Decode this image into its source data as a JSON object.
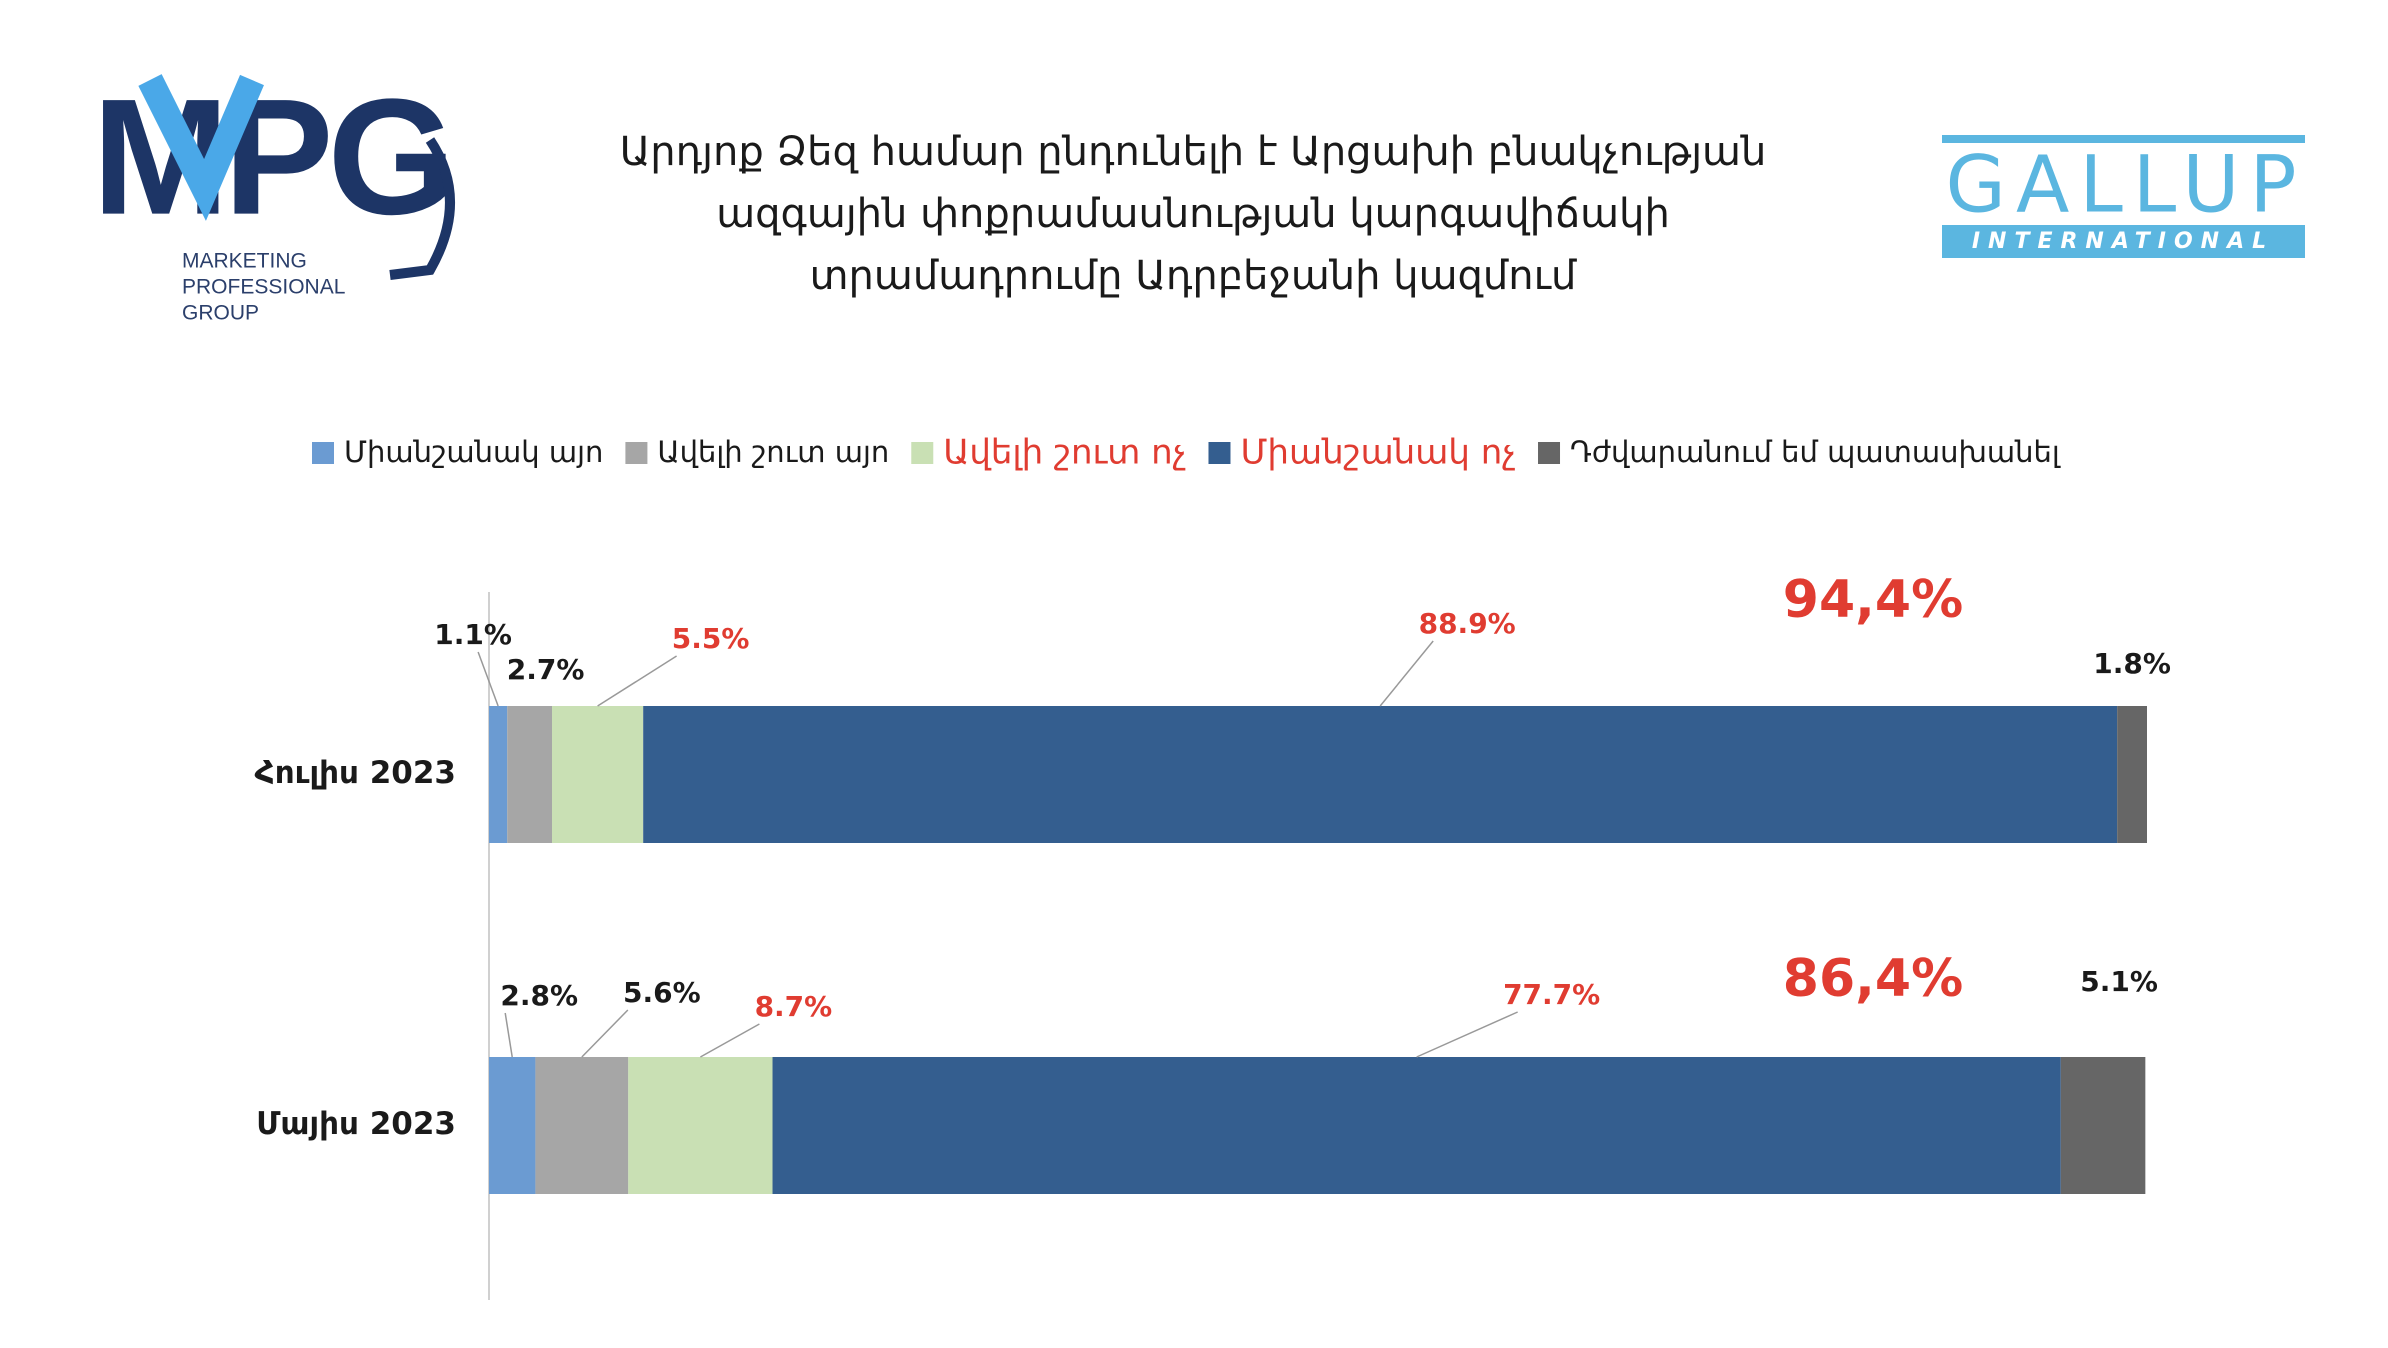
{
  "logos": {
    "left": {
      "text": "MPG",
      "lines": [
        "MARKETING",
        "PROFESSIONAL",
        "GROUP"
      ]
    },
    "right": {
      "text": "GALLUP",
      "band": "INTERNATIONAL"
    }
  },
  "chart_data": {
    "type": "stacked-barh",
    "title": [
      "Արդյոք Ձեզ համար ընդունելի է Արցախի բնակչության",
      "ազգային փոքրամասնության կարգավիճակի",
      "տրամադրումը Ադրբեջանի կազմում"
    ],
    "categories": [
      "Հուլիս 2023",
      "Մայիս 2023"
    ],
    "series": [
      {
        "name": "Միանշանակ այո",
        "color": "#6b9bd2",
        "label_color": "#1a1a1a",
        "values": [
          1.1,
          2.8
        ],
        "value_labels": [
          "1.1%",
          "2.8%"
        ]
      },
      {
        "name": "Ավելի շուտ այո",
        "color": "#a6a6a6",
        "label_color": "#1a1a1a",
        "values": [
          2.7,
          5.6
        ],
        "value_labels": [
          "2.7%",
          "5.6%"
        ]
      },
      {
        "name": "Ավելի շուտ ոչ",
        "color": "#c9e0b4",
        "label_color": "#e03c31",
        "values": [
          5.5,
          8.7
        ],
        "value_labels": [
          "5.5%",
          "8.7%"
        ]
      },
      {
        "name": "Միանշանակ ոչ",
        "color": "#345e8f",
        "label_color": "#e03c31",
        "values": [
          88.9,
          77.7
        ],
        "value_labels": [
          "88.9%",
          "77.7%"
        ]
      },
      {
        "name": "Դժվարանում եմ պատասխանել",
        "color": "#666666",
        "label_color": "#1a1a1a",
        "values": [
          1.8,
          5.1
        ],
        "value_labels": [
          "1.8%",
          "5.1%"
        ]
      }
    ],
    "annotations": [
      "94,4%",
      "86,4%"
    ],
    "annotation_color": "#e03c31",
    "xlim": [
      0,
      100
    ]
  }
}
